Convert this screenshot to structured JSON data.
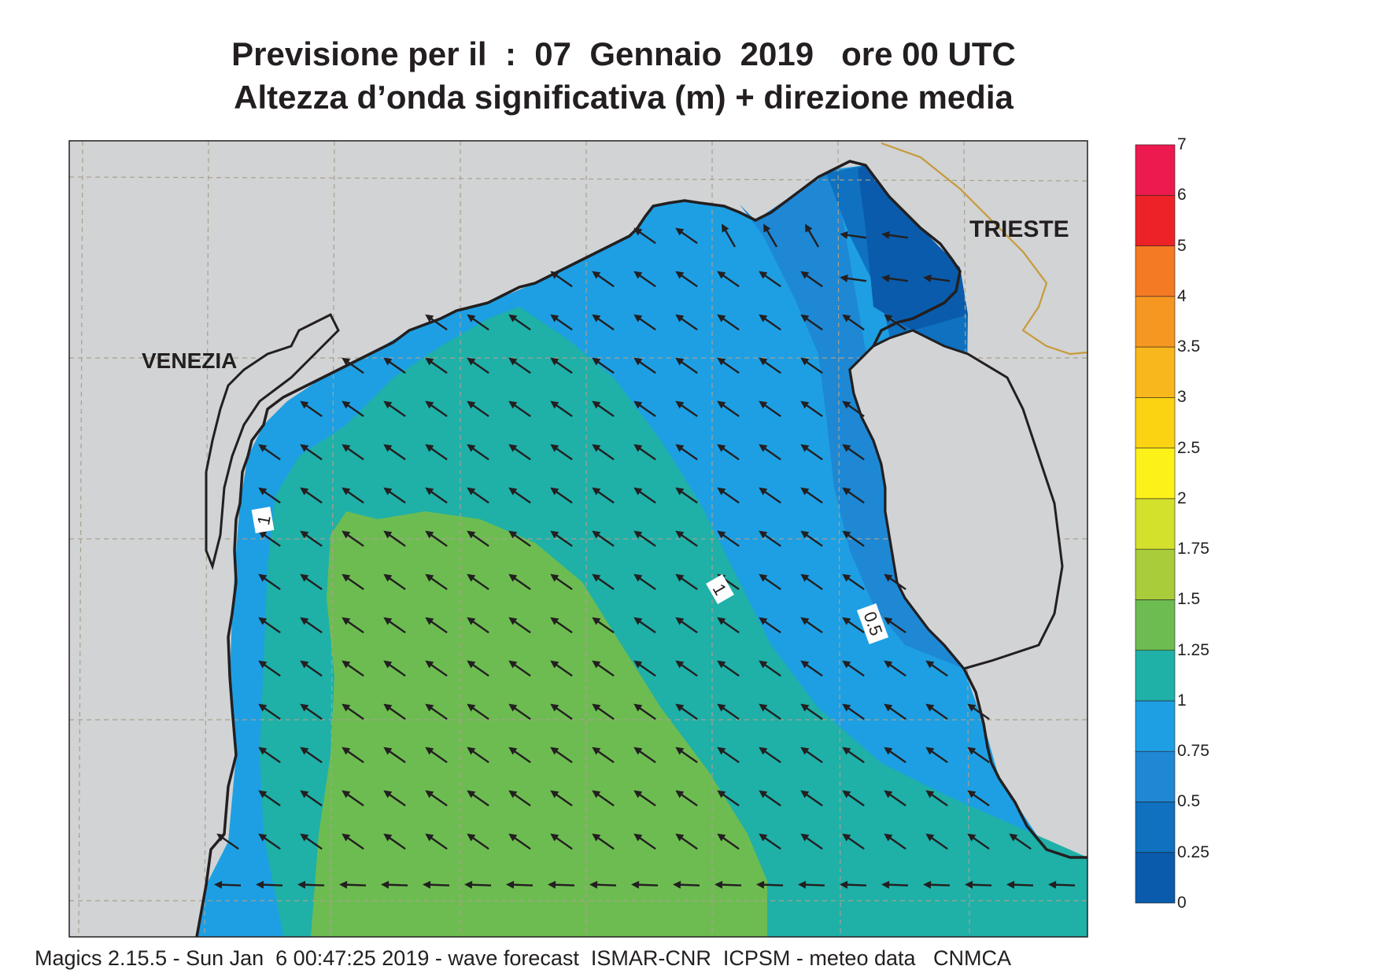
{
  "title_line1": "Previsione per il  :  07  Gennaio  2019   ore 00 UTC",
  "title_line2": "Altezza d’onda significativa (m) + direzione media",
  "places": {
    "venezia": "VENEZIA",
    "trieste": "TRIESTE"
  },
  "contour_labels": [
    "1",
    "1",
    "0.5"
  ],
  "colorbar": {
    "levels": [
      {
        "label": "0",
        "color": "#0a5bab"
      },
      {
        "label": "0.25",
        "color": "#0f71bf"
      },
      {
        "label": "0.5",
        "color": "#1e88d4"
      },
      {
        "label": "0.75",
        "color": "#1e9fe3"
      },
      {
        "label": "1",
        "color": "#1fb0a8"
      },
      {
        "label": "1.25",
        "color": "#6dbc51"
      },
      {
        "label": "1.5",
        "color": "#a9cc3b"
      },
      {
        "label": "1.75",
        "color": "#d3e12d"
      },
      {
        "label": "2",
        "color": "#fdf11a"
      },
      {
        "label": "2.5",
        "color": "#fbd312"
      },
      {
        "label": "3",
        "color": "#f8b71d"
      },
      {
        "label": "3.5",
        "color": "#f69722"
      },
      {
        "label": "4",
        "color": "#f47a24"
      },
      {
        "label": "5",
        "color": "#ec2227"
      },
      {
        "label": "6",
        "color": "#ec1a4f"
      },
      {
        "label": "7",
        "color": ""
      }
    ]
  },
  "land_color": "#d1d3d4",
  "border_color": "#c79a3a",
  "footer": "Magics 2.15.5 - Sun Jan  6 00:47:25 2019 - wave forecast  ISMAR-CNR  ICPSM - meteo data   CNMCA"
}
